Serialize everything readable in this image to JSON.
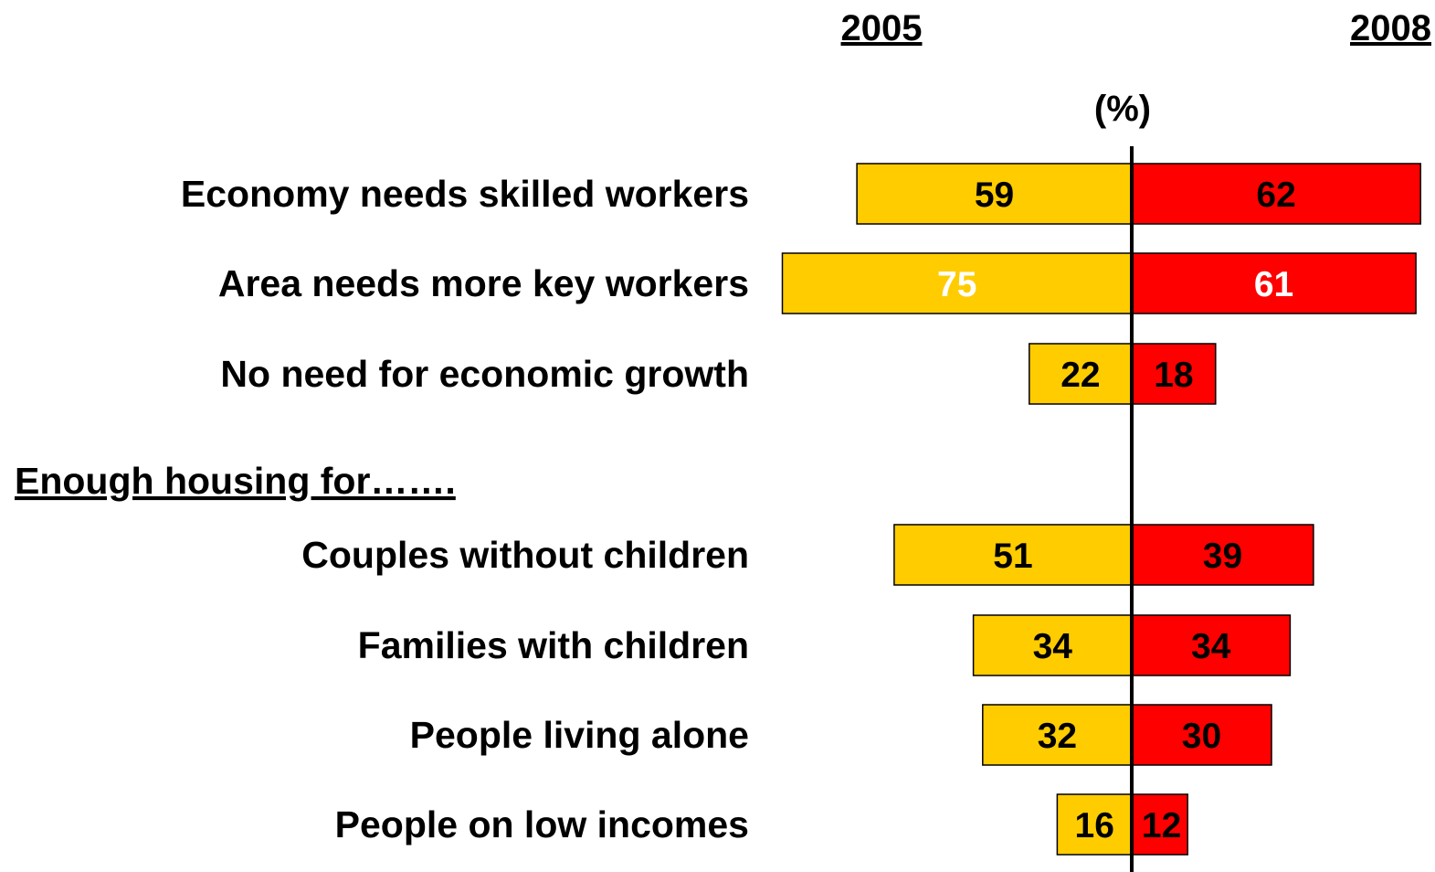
{
  "chart_data": {
    "type": "bar",
    "orientation": "horizontal-diverging",
    "series": [
      {
        "name": "2005",
        "color": "#FFCC00",
        "side": "left",
        "values": [
          59,
          75,
          22,
          51,
          34,
          32,
          16
        ]
      },
      {
        "name": "2008",
        "color": "#FF0000",
        "side": "right",
        "values": [
          62,
          61,
          18,
          39,
          34,
          30,
          12
        ]
      }
    ],
    "categories": [
      "Economy needs skilled workers",
      "Area needs more key workers",
      "No need for economic growth",
      "Couples without children",
      "Families with children",
      "People living alone",
      "People on low incomes"
    ],
    "group_heading": "Enough housing for…….",
    "group_heading_before_index": 3,
    "unit_label": "(%)",
    "data_label_colors": {
      "2005": [
        "#000000",
        "#FFFFFF",
        "#000000",
        "#000000",
        "#000000",
        "#000000",
        "#000000"
      ],
      "2008": [
        "#000000",
        "#FFFFFF",
        "#000000",
        "#000000",
        "#000000",
        "#000000",
        "#000000"
      ]
    },
    "bar_outline_color": "#000000",
    "axis_line_color": "#000000",
    "grid": false,
    "legend_placement": "top, series names above each side",
    "xlim": [
      -75,
      62
    ]
  }
}
